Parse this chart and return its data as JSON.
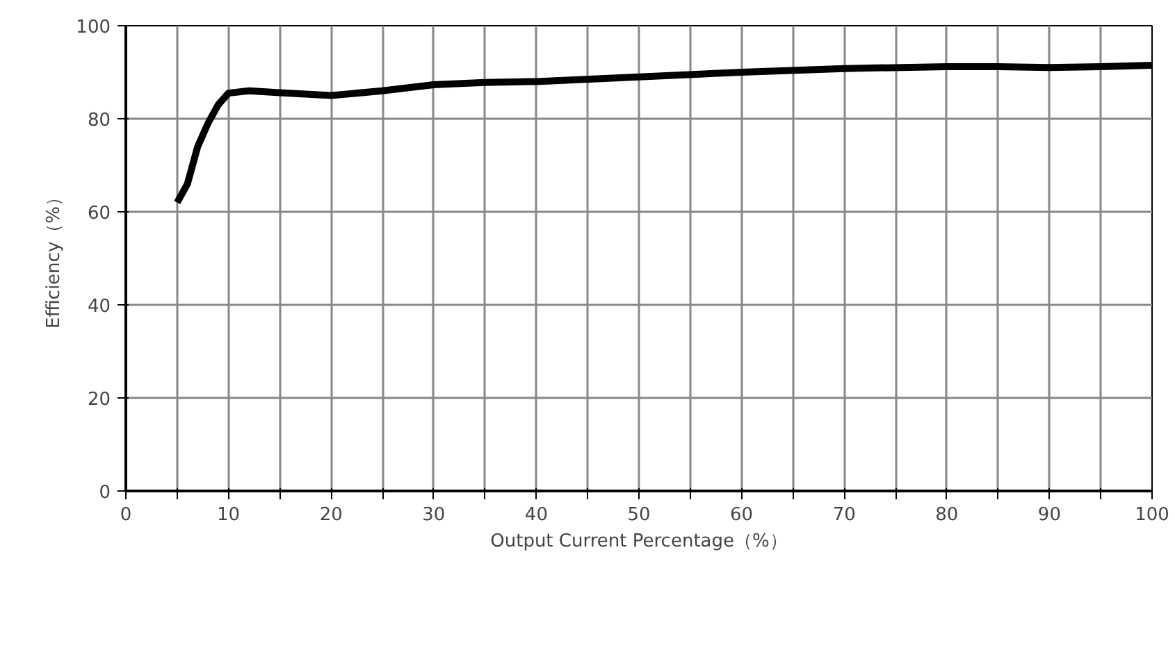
{
  "chart_data": {
    "type": "line",
    "xlabel": "Output Current Percentage（%）",
    "ylabel": "Efficiency（%）",
    "x": [
      5,
      6,
      7,
      8,
      9,
      10,
      12,
      15,
      20,
      25,
      30,
      35,
      40,
      50,
      60,
      70,
      80,
      85,
      90,
      95,
      100
    ],
    "series": [
      {
        "color": "#000000",
        "values": [
          62,
          66,
          74,
          79,
          83,
          85.5,
          86,
          85.6,
          85,
          86,
          87.3,
          87.8,
          88,
          89,
          90,
          90.8,
          91.2,
          91.2,
          91,
          91.2,
          91.5
        ]
      }
    ],
    "xlim": [
      0,
      100
    ],
    "ylim": [
      0,
      100
    ],
    "xticks": [
      0,
      {
        "value": 5,
        "label": null
      },
      10,
      {
        "value": 15,
        "label": null
      },
      20,
      {
        "value": 25,
        "label": null
      },
      30,
      {
        "value": 35,
        "label": null
      },
      40,
      {
        "value": 45,
        "label": null
      },
      50,
      {
        "value": 55,
        "label": null
      },
      60,
      {
        "value": 65,
        "label": null
      },
      70,
      {
        "value": 75,
        "label": null
      },
      80,
      {
        "value": 85,
        "label": null
      },
      90,
      {
        "value": 95,
        "label": null
      },
      100
    ],
    "yticks": [
      0,
      20,
      40,
      60,
      80,
      100
    ],
    "grid": true,
    "marker": "none",
    "line_style": "solid"
  }
}
